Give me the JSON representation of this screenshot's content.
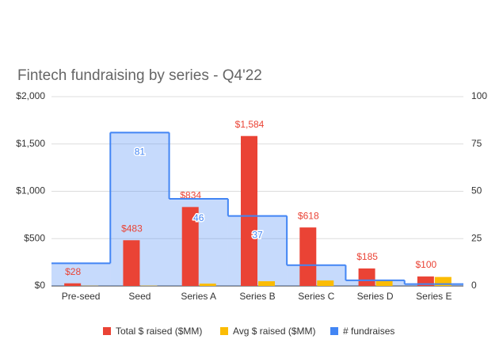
{
  "chart_data": {
    "type": "bar-step",
    "title": "Fintech fundraising by series - Q4'22",
    "categories": [
      "Pre-seed",
      "Seed",
      "Series A",
      "Series B",
      "Series C",
      "Series D",
      "Series E"
    ],
    "series": [
      {
        "name": "Total $ raised ($MM)",
        "color": "#ea4335",
        "kind": "bar",
        "values": [
          28,
          483,
          834,
          1584,
          618,
          185,
          100
        ],
        "value_labels": [
          "$28",
          "$483",
          "$834",
          "$1,584",
          "$618",
          "$185",
          "$100"
        ]
      },
      {
        "name": "Avg $ raised ($MM)",
        "color": "#fbbc04",
        "kind": "bar",
        "values": [
          2,
          3,
          25,
          50,
          58,
          58,
          95
        ]
      },
      {
        "name": "# fundraises",
        "color": "#4285f4",
        "kind": "step",
        "axis": "y2",
        "values": [
          12,
          81,
          46,
          37,
          11,
          3,
          1
        ],
        "value_labels": [
          null,
          "81",
          "46",
          "37",
          null,
          null,
          null
        ]
      }
    ],
    "ylim": [
      0,
      2000
    ],
    "yticks": [
      {
        "value": 0,
        "label": "$0"
      },
      {
        "value": 500,
        "label": "$500"
      },
      {
        "value": 1000,
        "label": "$1,000"
      },
      {
        "value": 1500,
        "label": "$1,500"
      },
      {
        "value": 2000,
        "label": "$2,000"
      }
    ],
    "y2lim": [
      0,
      100
    ],
    "y2ticks": [
      0,
      25,
      50,
      75,
      100
    ],
    "grid": true
  }
}
